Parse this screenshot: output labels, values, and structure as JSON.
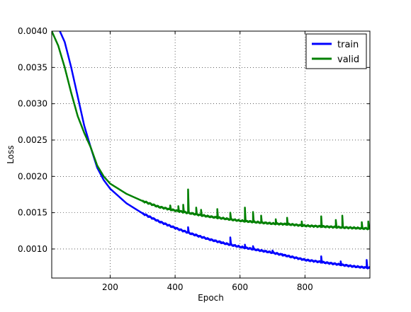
{
  "chart_data": {
    "type": "line",
    "xlabel": "Epoch",
    "ylabel": "Loss",
    "xlim": [
      20,
      1000
    ],
    "ylim": [
      0.0006,
      0.004
    ],
    "x_ticks": [
      200,
      400,
      600,
      800
    ],
    "x_tick_labels": [
      "200",
      "400",
      "600",
      "800"
    ],
    "y_ticks": [
      0.001,
      0.0015,
      0.002,
      0.0025,
      0.003,
      0.0035,
      0.004
    ],
    "y_tick_labels": [
      "0.0010",
      "0.0015",
      "0.0020",
      "0.0025",
      "0.0030",
      "0.0035",
      "0.0040"
    ],
    "grid": true,
    "legend_position": "top-right",
    "series": [
      {
        "name": "train",
        "color": "#0000ff",
        "x": [
          45,
          60,
          80,
          100,
          120,
          140,
          160,
          180,
          200,
          250,
          300,
          350,
          400,
          450,
          500,
          550,
          600,
          650,
          700,
          750,
          800,
          850,
          900,
          950,
          1000
        ],
        "y": [
          0.004,
          0.00385,
          0.0035,
          0.0031,
          0.0027,
          0.0024,
          0.00212,
          0.00195,
          0.00183,
          0.00163,
          0.00149,
          0.00138,
          0.00129,
          0.00121,
          0.00114,
          0.00108,
          0.00103,
          0.00099,
          0.00095,
          0.0009,
          0.00085,
          0.00082,
          0.00079,
          0.00076,
          0.00074
        ],
        "spikes": [
          [
            440,
            0.0013
          ],
          [
            465,
            0.0012
          ],
          [
            540,
            0.0011
          ],
          [
            570,
            0.00116
          ],
          [
            615,
            0.00106
          ],
          [
            640,
            0.00104
          ],
          [
            700,
            0.00098
          ],
          [
            730,
            0.00093
          ],
          [
            850,
            0.0009
          ],
          [
            910,
            0.00083
          ],
          [
            990,
            0.00085
          ]
        ]
      },
      {
        "name": "valid",
        "color": "#008000",
        "x": [
          20,
          40,
          60,
          80,
          100,
          120,
          140,
          160,
          180,
          200,
          250,
          300,
          350,
          400,
          450,
          500,
          550,
          600,
          650,
          700,
          750,
          800,
          850,
          900,
          950,
          1000
        ],
        "y": [
          0.004,
          0.0038,
          0.0035,
          0.00315,
          0.00283,
          0.0026,
          0.0024,
          0.00215,
          0.002,
          0.0019,
          0.00176,
          0.00166,
          0.00158,
          0.00153,
          0.00149,
          0.00145,
          0.00142,
          0.00139,
          0.00137,
          0.00135,
          0.00134,
          0.00132,
          0.00131,
          0.0013,
          0.00129,
          0.00128
        ],
        "spikes": [
          [
            385,
            0.0016
          ],
          [
            410,
            0.00159
          ],
          [
            425,
            0.00161
          ],
          [
            440,
            0.00182
          ],
          [
            465,
            0.00157
          ],
          [
            480,
            0.00154
          ],
          [
            530,
            0.00155
          ],
          [
            570,
            0.0015
          ],
          [
            615,
            0.00157
          ],
          [
            640,
            0.00151
          ],
          [
            665,
            0.00146
          ],
          [
            710,
            0.00141
          ],
          [
            745,
            0.00143
          ],
          [
            790,
            0.00138
          ],
          [
            850,
            0.00145
          ],
          [
            895,
            0.0014
          ],
          [
            915,
            0.00146
          ],
          [
            975,
            0.00137
          ],
          [
            995,
            0.00138
          ]
        ]
      }
    ]
  }
}
